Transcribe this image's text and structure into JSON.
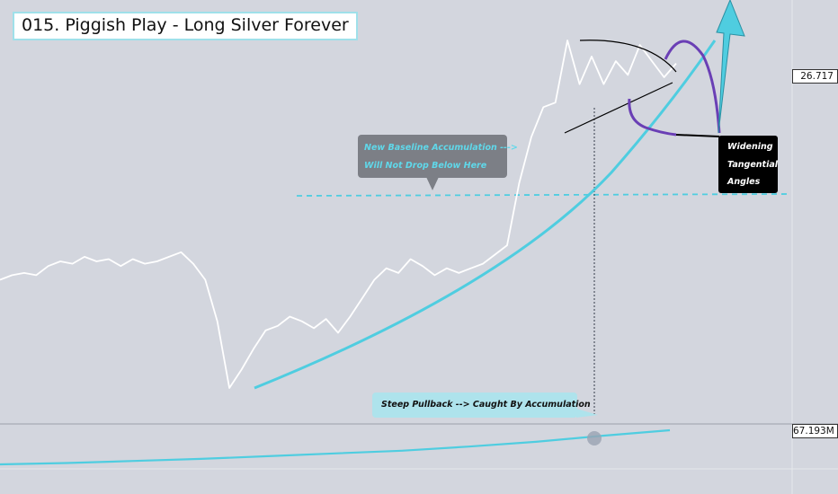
{
  "title": "015. Piggish Play - Long Silver Forever",
  "annotations": {
    "baseline_line1": "New Baseline Accumulation --->",
    "baseline_line2": "Will Not Drop Below Here",
    "widening_line1": "Widening",
    "widening_line2": "Tangential",
    "widening_line3": "Angles",
    "pullback": "Steep Pullback --> Caught By Accumulation"
  },
  "axis": {
    "last_price_label": "26.717",
    "volume_label": "67.193M"
  },
  "colors": {
    "background": "#d3d6de",
    "price_line": "#ffffff",
    "accent_curve": "#4fcde0",
    "purple_curve": "#6a3fb5",
    "dashed_baseline": "#4fcde0"
  },
  "chart_data": {
    "type": "line",
    "title": "015. Piggish Play - Long Silver Forever",
    "series": [
      {
        "values": [
          17.3,
          17.5,
          17.6,
          17.5,
          17.9,
          18.1,
          18.0,
          18.3,
          18.1,
          18.2,
          17.9,
          18.2,
          18.0,
          18.1,
          18.3,
          18.5,
          18.0,
          17.3,
          15.5,
          12.6,
          13.4,
          14.3,
          15.1,
          15.3,
          15.7,
          15.5,
          15.2,
          15.6,
          15.0,
          15.7,
          16.5,
          17.3,
          17.8,
          17.6,
          18.2,
          17.9,
          17.5,
          17.8,
          17.6,
          17.8,
          18.0,
          18.4,
          18.8,
          21.5,
          23.5,
          24.8,
          25.0,
          27.7,
          25.8,
          27.0,
          25.8,
          26.8,
          26.2,
          27.5,
          26.8,
          26.1,
          26.7
        ]
      }
    ],
    "volume_series": [
      0.5,
      0.52,
      0.55,
      0.58,
      0.62,
      0.66,
      0.7,
      0.76,
      0.83,
      0.92,
      1.0
    ]
  }
}
